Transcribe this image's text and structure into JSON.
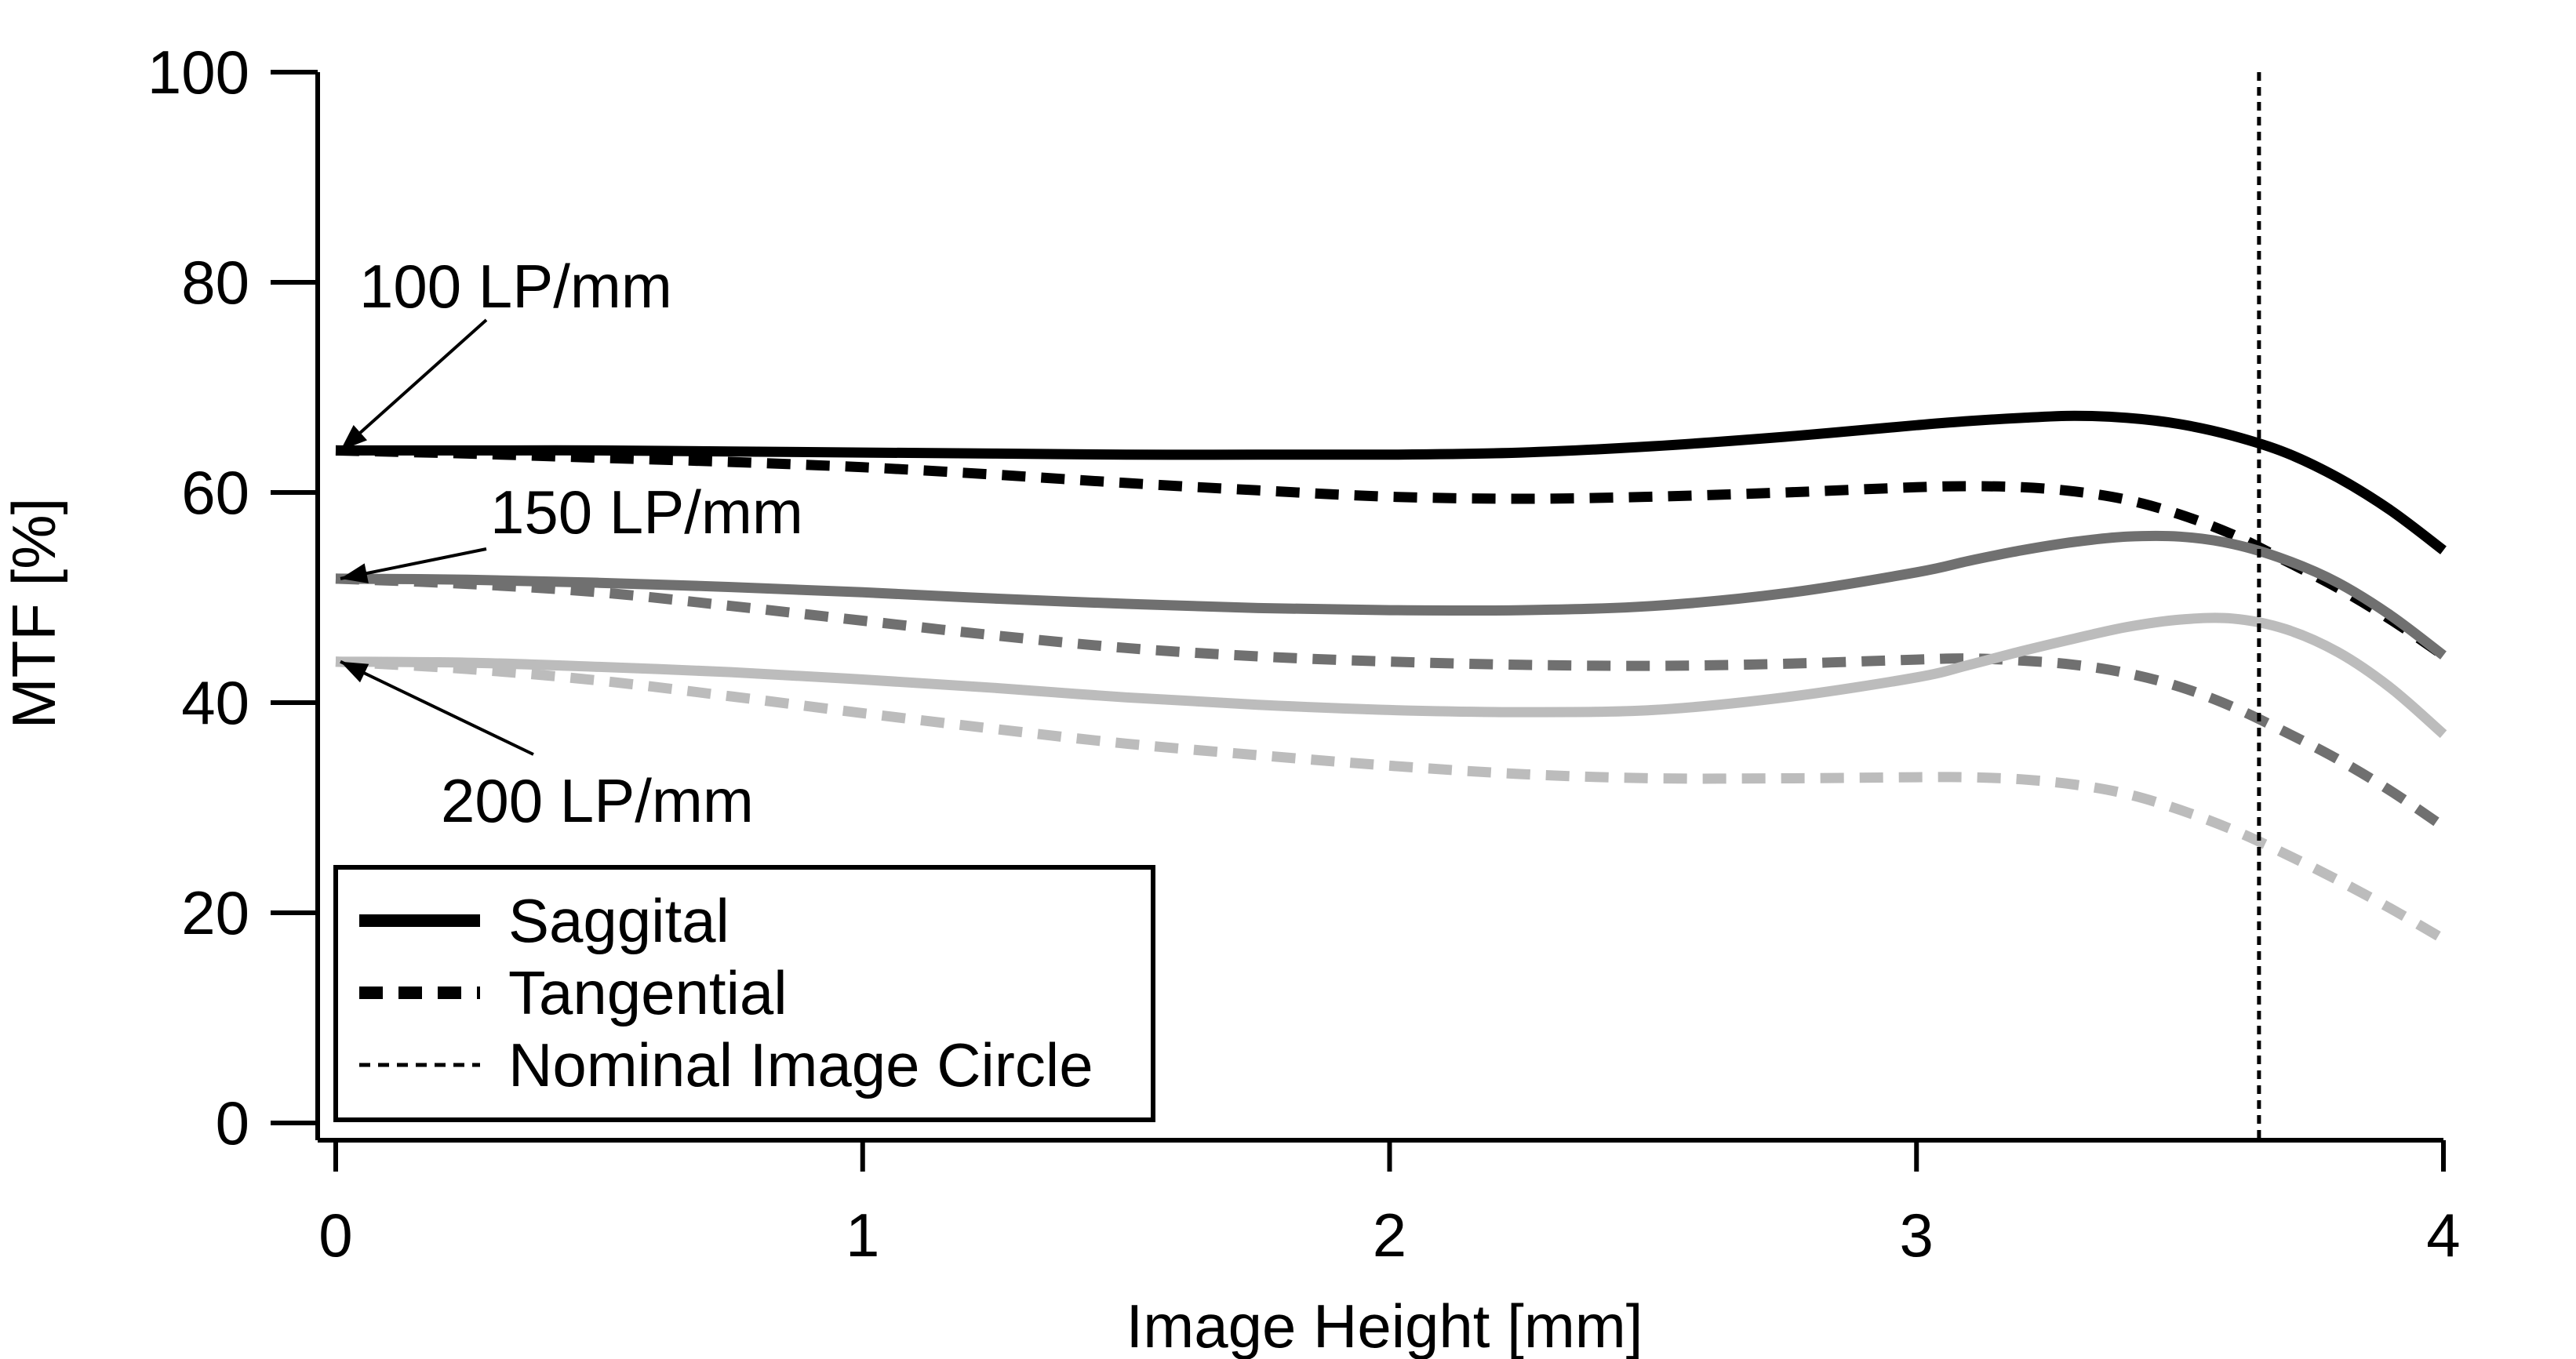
{
  "chart_data": {
    "type": "line",
    "title": "",
    "xlabel": "Image Height [mm]",
    "ylabel": "MTF [%]",
    "xlim": [
      0,
      4
    ],
    "ylim": [
      0,
      100
    ],
    "xticks": [
      0,
      1,
      2,
      3,
      4
    ],
    "yticks": [
      0,
      20,
      40,
      60,
      80,
      100
    ],
    "grid": false,
    "legend_position": "bottom-left",
    "legend": [
      {
        "label": "Saggital",
        "style": "solid"
      },
      {
        "label": "Tangential",
        "style": "dashed"
      },
      {
        "label": "Nominal Image Circle",
        "style": "dotted"
      }
    ],
    "annotations": [
      {
        "text": "100 LP/mm",
        "target_series": "100 LP/mm",
        "target_x": 0,
        "target_y": 64
      },
      {
        "text": "150 LP/mm",
        "target_series": "150 LP/mm",
        "target_x": 0,
        "target_y": 51.8
      },
      {
        "text": "200 LP/mm",
        "target_series": "200 LP/mm",
        "target_x": 0,
        "target_y": 43.9
      }
    ],
    "vertical_line": {
      "x": 3.65,
      "label": "Nominal Image Circle"
    },
    "series": [
      {
        "frequency": "100 LP/mm",
        "orientation": "Saggital",
        "color": "#000000",
        "x": [
          0,
          0.25,
          0.5,
          0.75,
          1.0,
          1.25,
          1.5,
          1.75,
          2.0,
          2.25,
          2.5,
          2.75,
          3.0,
          3.1,
          3.2,
          3.3,
          3.4,
          3.5,
          3.6,
          3.7,
          3.8,
          3.9,
          4.0
        ],
        "y": [
          64.0,
          64.0,
          64.0,
          63.9,
          63.8,
          63.7,
          63.6,
          63.6,
          63.6,
          63.8,
          64.4,
          65.3,
          66.4,
          66.8,
          67.1,
          67.3,
          67.1,
          66.5,
          65.4,
          63.8,
          61.4,
          58.3,
          54.5
        ]
      },
      {
        "frequency": "100 LP/mm",
        "orientation": "Tangential",
        "color": "#000000",
        "x": [
          0,
          0.25,
          0.5,
          0.75,
          1.0,
          1.25,
          1.5,
          1.75,
          2.0,
          2.25,
          2.5,
          2.75,
          3.0,
          3.1,
          3.2,
          3.3,
          3.4,
          3.5,
          3.6,
          3.7,
          3.8,
          3.9,
          4.0
        ],
        "y": [
          64.0,
          63.7,
          63.3,
          62.9,
          62.4,
          61.7,
          60.9,
          60.2,
          59.6,
          59.4,
          59.6,
          60.0,
          60.5,
          60.6,
          60.5,
          60.1,
          59.3,
          57.9,
          56.0,
          53.5,
          50.9,
          47.9,
          44.5
        ]
      },
      {
        "frequency": "150 LP/mm",
        "orientation": "Saggital",
        "color": "#707070",
        "x": [
          0,
          0.25,
          0.5,
          0.75,
          1.0,
          1.25,
          1.5,
          1.75,
          2.0,
          2.25,
          2.5,
          2.75,
          3.0,
          3.1,
          3.2,
          3.3,
          3.4,
          3.5,
          3.6,
          3.7,
          3.8,
          3.9,
          4.0
        ],
        "y": [
          51.8,
          51.7,
          51.4,
          51.0,
          50.5,
          49.9,
          49.4,
          49.0,
          48.8,
          48.8,
          49.2,
          50.4,
          52.4,
          53.5,
          54.5,
          55.3,
          55.8,
          55.8,
          55.1,
          53.6,
          51.4,
          48.3,
          44.5
        ]
      },
      {
        "frequency": "150 LP/mm",
        "orientation": "Tangential",
        "color": "#707070",
        "x": [
          0,
          0.25,
          0.5,
          0.75,
          1.0,
          1.25,
          1.5,
          1.75,
          2.0,
          2.25,
          2.5,
          2.75,
          3.0,
          3.1,
          3.2,
          3.3,
          3.4,
          3.5,
          3.6,
          3.7,
          3.8,
          3.9,
          4.0
        ],
        "y": [
          51.8,
          51.3,
          50.5,
          49.2,
          47.8,
          46.4,
          45.2,
          44.4,
          43.9,
          43.6,
          43.5,
          43.7,
          44.1,
          44.2,
          44.0,
          43.6,
          42.8,
          41.5,
          39.6,
          37.2,
          34.6,
          31.6,
          28.2
        ]
      },
      {
        "frequency": "200 LP/mm",
        "orientation": "Saggital",
        "color": "#bcbcbc",
        "x": [
          0,
          0.25,
          0.5,
          0.75,
          1.0,
          1.25,
          1.5,
          1.75,
          2.0,
          2.25,
          2.5,
          2.75,
          3.0,
          3.1,
          3.2,
          3.3,
          3.4,
          3.5,
          3.6,
          3.7,
          3.8,
          3.9,
          4.0
        ],
        "y": [
          43.9,
          43.8,
          43.4,
          42.9,
          42.2,
          41.4,
          40.5,
          39.8,
          39.3,
          39.1,
          39.3,
          40.5,
          42.4,
          43.6,
          44.9,
          46.1,
          47.2,
          47.9,
          48.0,
          47.0,
          44.8,
          41.4,
          37.0
        ]
      },
      {
        "frequency": "200 LP/mm",
        "orientation": "Tangential",
        "color": "#bcbcbc",
        "x": [
          0,
          0.25,
          0.5,
          0.75,
          1.0,
          1.25,
          1.5,
          1.75,
          2.0,
          2.25,
          2.5,
          2.75,
          3.0,
          3.1,
          3.2,
          3.3,
          3.4,
          3.5,
          3.6,
          3.7,
          3.8,
          3.9,
          4.0
        ],
        "y": [
          43.9,
          43.2,
          42.1,
          40.6,
          39.0,
          37.5,
          36.1,
          35.0,
          34.0,
          33.2,
          32.8,
          32.8,
          32.9,
          32.9,
          32.7,
          32.2,
          31.3,
          29.8,
          27.9,
          25.6,
          23.1,
          20.4,
          17.5
        ]
      }
    ]
  }
}
